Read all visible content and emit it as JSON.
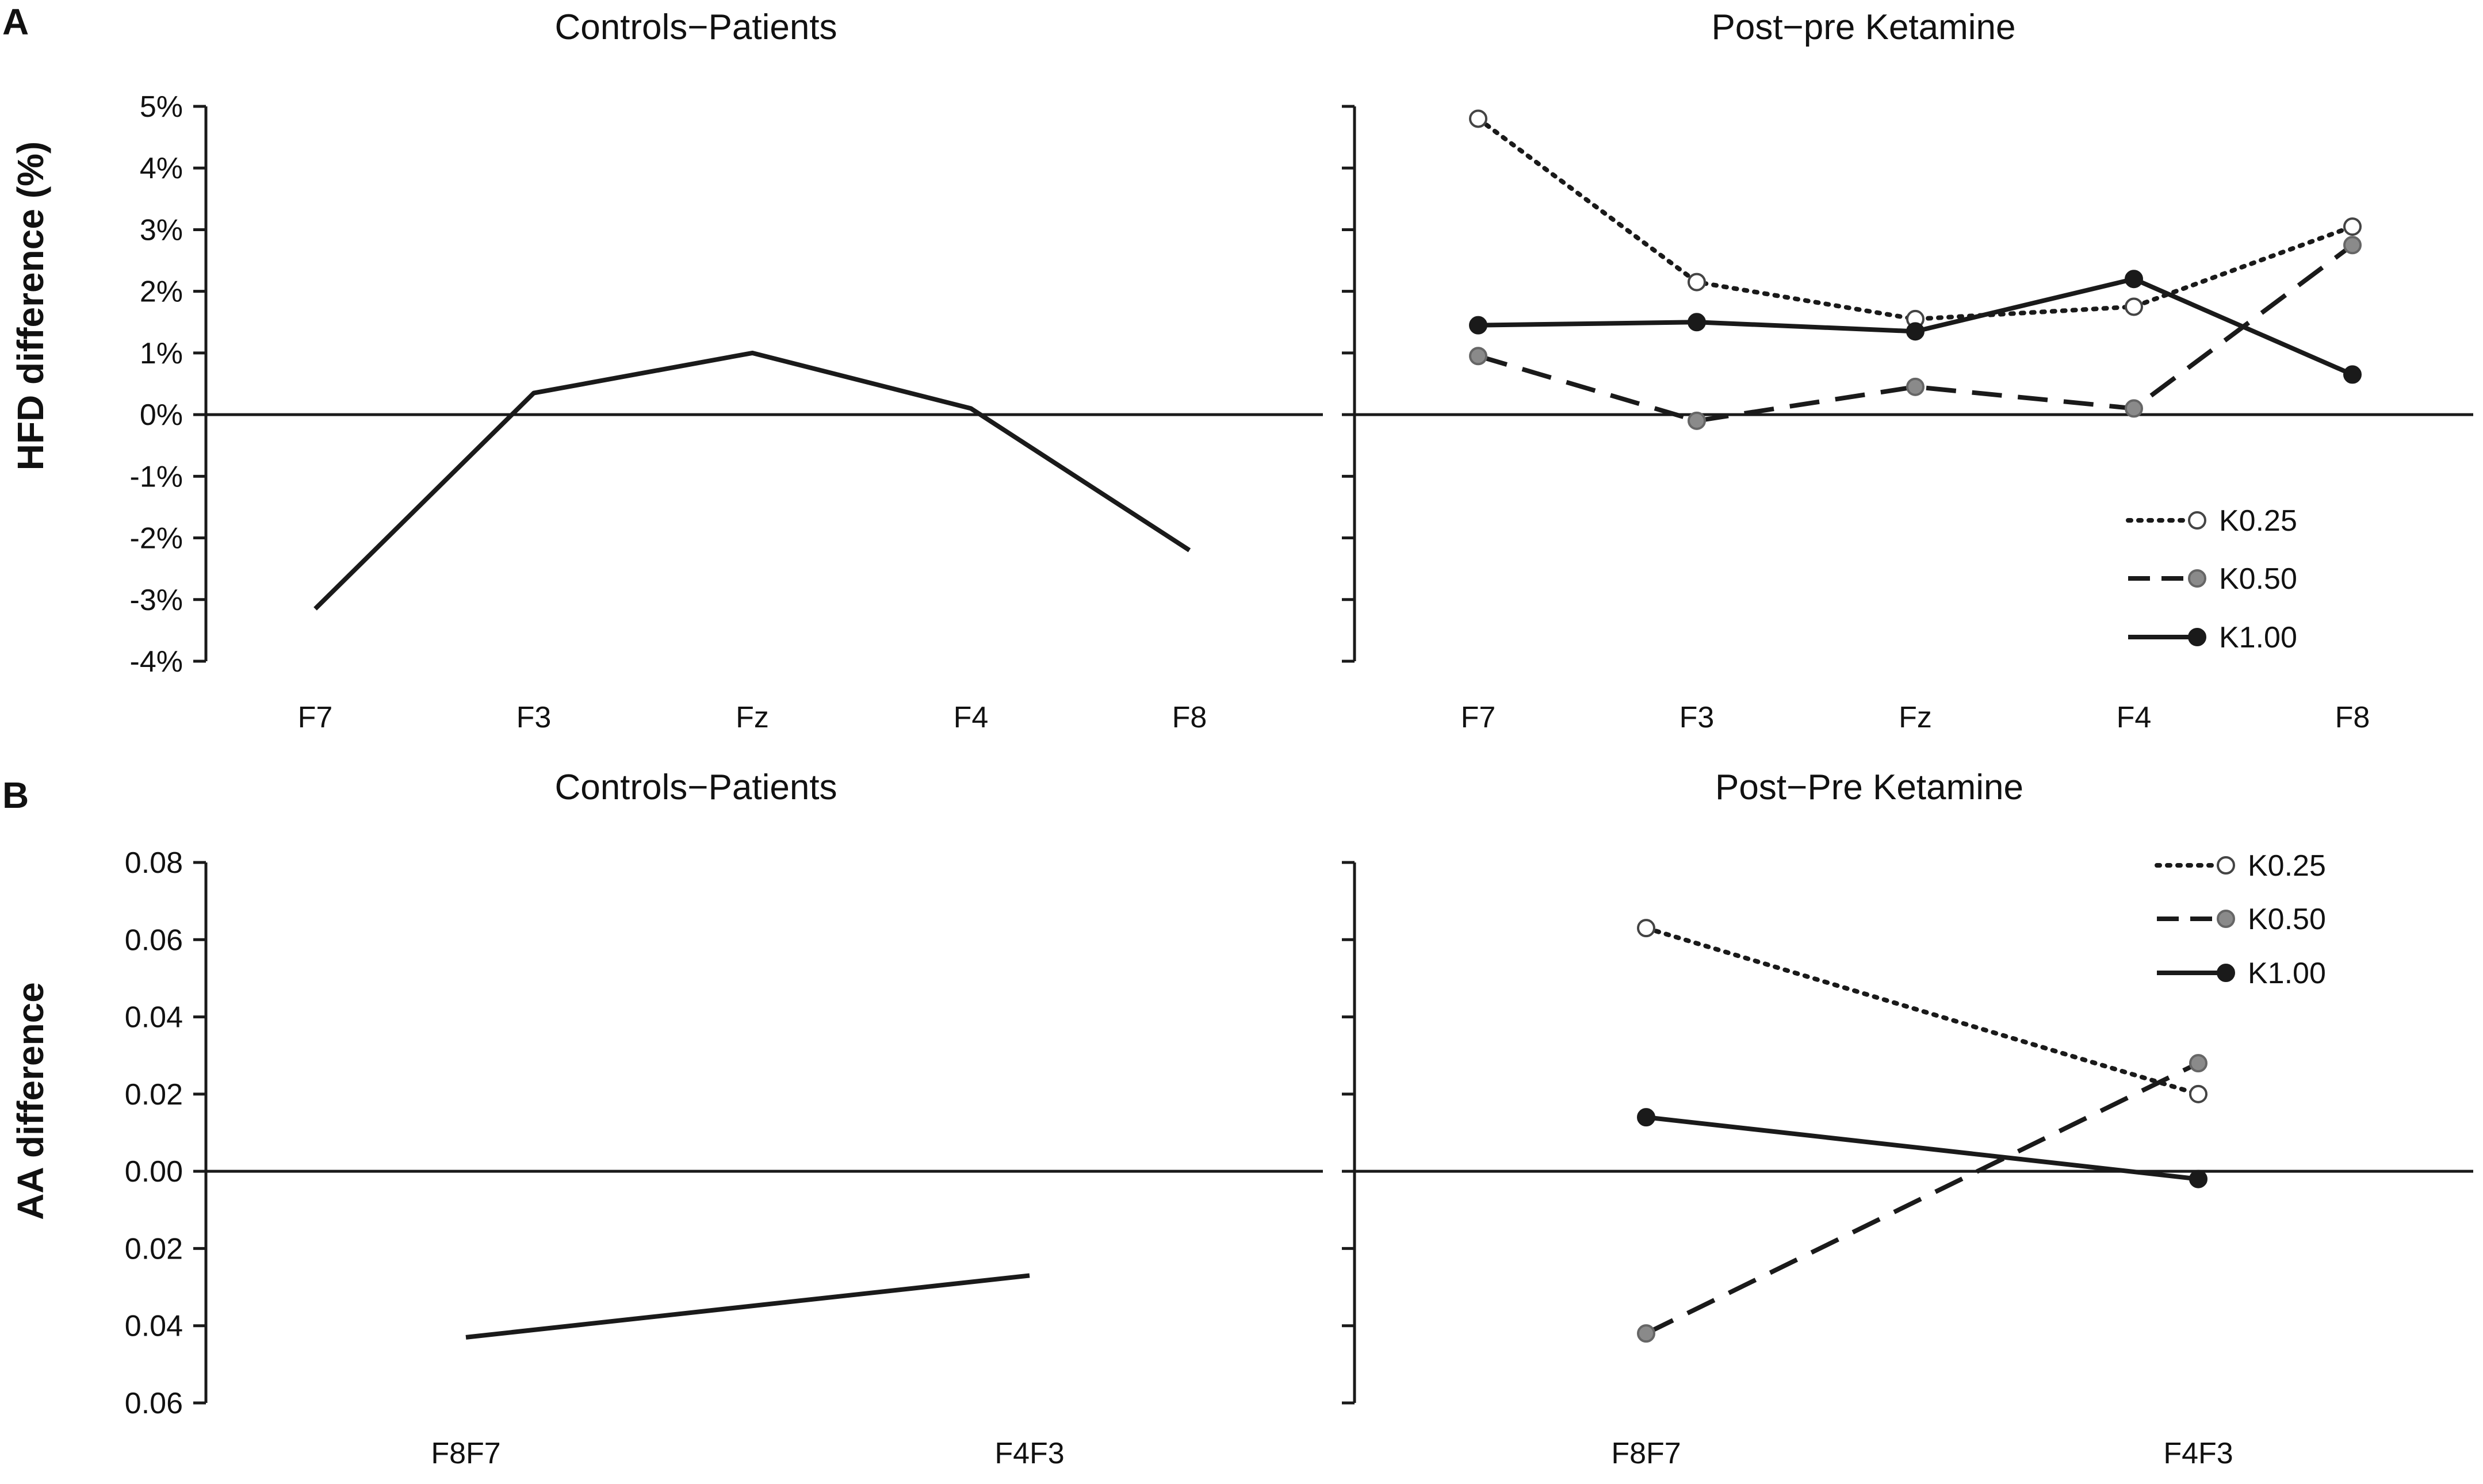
{
  "panels": [
    {
      "letter": "A"
    },
    {
      "letter": "B"
    }
  ],
  "chart_data": [
    {
      "id": "A-left",
      "type": "line",
      "panel": "A",
      "title": "Controls−Patients",
      "ylabel": "HFD difference  (%)",
      "categories": [
        "F7",
        "F3",
        "Fz",
        "F4",
        "F8"
      ],
      "ylim": [
        -4,
        5
      ],
      "yticks": [
        -4,
        -3,
        -2,
        -1,
        0,
        1,
        2,
        3,
        4,
        5
      ],
      "ytick_labels": [
        "-4%",
        "-3%",
        "-2%",
        "-1%",
        "0%",
        "1%",
        "2%",
        "3%",
        "4%",
        "5%"
      ],
      "series": [
        {
          "name": "Controls−Patients",
          "style": "solid",
          "marker": "none",
          "color": "#1a1a1a",
          "values": [
            -3.15,
            0.35,
            1.0,
            0.1,
            -2.2
          ]
        }
      ]
    },
    {
      "id": "A-right",
      "type": "line",
      "panel": "A",
      "title": "Post−pre Ketamine",
      "categories": [
        "F7",
        "F3",
        "Fz",
        "F4",
        "F8"
      ],
      "ylim": [
        -4,
        5
      ],
      "yticks": [
        -4,
        -3,
        -2,
        -1,
        0,
        1,
        2,
        3,
        4,
        5
      ],
      "legend": "bottom-right",
      "series": [
        {
          "name": "K0.25",
          "style": "dotted",
          "marker": "open-circle",
          "color": "#1a1a1a",
          "values": [
            4.8,
            2.15,
            1.55,
            1.75,
            3.05
          ]
        },
        {
          "name": "K0.50",
          "style": "dashed",
          "marker": "gray-circle",
          "color": "#1a1a1a",
          "values": [
            0.95,
            -0.1,
            0.45,
            0.1,
            2.75
          ]
        },
        {
          "name": "K1.00",
          "style": "solid",
          "marker": "black-circle",
          "color": "#1a1a1a",
          "values": [
            1.45,
            1.5,
            1.35,
            2.2,
            0.65
          ]
        }
      ]
    },
    {
      "id": "B-left",
      "type": "line",
      "panel": "B",
      "title": "Controls−Patients",
      "ylabel": "AA difference",
      "categories": [
        "F8F7",
        "F4F3"
      ],
      "ylim": [
        -0.06,
        0.08
      ],
      "yticks": [
        -0.06,
        -0.04,
        -0.02,
        0.0,
        0.02,
        0.04,
        0.06,
        0.08
      ],
      "ytick_labels": [
        "0.06",
        "0.04",
        "0.02",
        "0.00",
        "0.02",
        "0.04",
        "0.06",
        "0.08"
      ],
      "series": [
        {
          "name": "Controls−Patients",
          "style": "solid",
          "marker": "none",
          "color": "#1a1a1a",
          "values": [
            -0.043,
            -0.027
          ]
        }
      ]
    },
    {
      "id": "B-right",
      "type": "line",
      "panel": "B",
      "title": "Post−Pre Ketamine",
      "categories": [
        "F8F7",
        "F4F3"
      ],
      "ylim": [
        -0.06,
        0.08
      ],
      "yticks": [
        -0.06,
        -0.04,
        -0.02,
        0.0,
        0.02,
        0.04,
        0.06,
        0.08
      ],
      "legend": "top-right",
      "series": [
        {
          "name": "K0.25",
          "style": "dotted",
          "marker": "open-circle",
          "color": "#1a1a1a",
          "values": [
            0.063,
            0.02
          ]
        },
        {
          "name": "K0.50",
          "style": "dashed",
          "marker": "gray-circle",
          "color": "#1a1a1a",
          "values": [
            -0.042,
            0.028
          ]
        },
        {
          "name": "K1.00",
          "style": "solid",
          "marker": "black-circle",
          "color": "#1a1a1a",
          "values": [
            0.014,
            -0.002
          ]
        }
      ]
    }
  ],
  "colors": {
    "ink": "#1a1a1a",
    "gray_marker": "#8a8a8a",
    "open_marker_fill": "#ffffff"
  }
}
